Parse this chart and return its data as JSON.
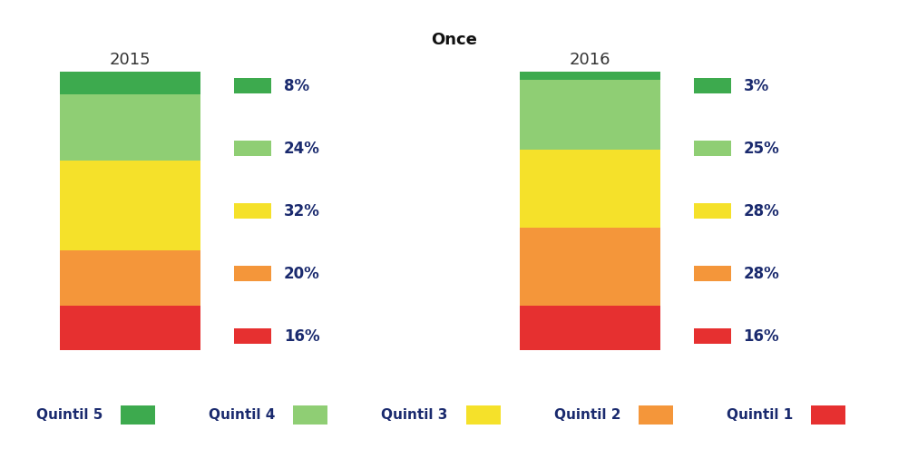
{
  "title": "Once",
  "years": [
    "2015",
    "2016"
  ],
  "quintil_labels": [
    "Quintil 5",
    "Quintil 4",
    "Quintil 3",
    "Quintil 2",
    "Quintil 1"
  ],
  "colors_top_to_bottom": [
    "#3daa4e",
    "#8fce74",
    "#f5e12a",
    "#f4963a",
    "#e63030"
  ],
  "values_2015": [
    8,
    24,
    32,
    20,
    16
  ],
  "values_2016": [
    3,
    25,
    28,
    28,
    16
  ],
  "labels_2015": [
    "8%",
    "24%",
    "32%",
    "20%",
    "16%"
  ],
  "labels_2016": [
    "3%",
    "25%",
    "28%",
    "28%",
    "16%"
  ],
  "background_color": "#ffffff",
  "title_fontsize": 13,
  "year_fontsize": 13,
  "label_fontsize": 12,
  "legend_fontsize": 11,
  "text_color": "#1a2a6e"
}
